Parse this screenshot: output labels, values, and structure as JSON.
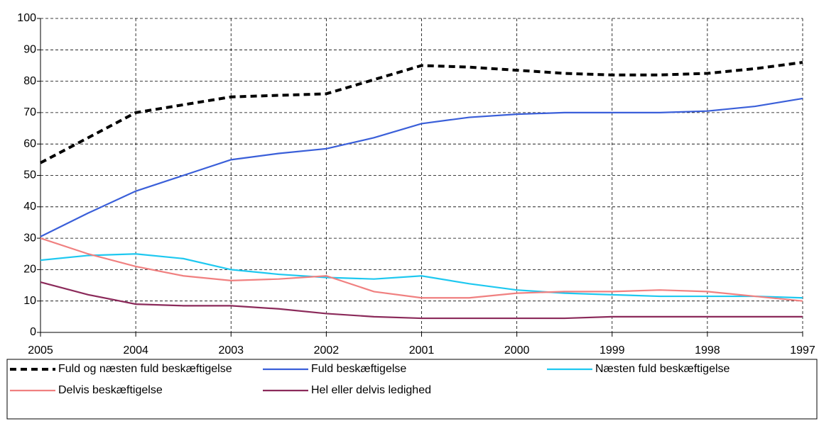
{
  "chart_data": {
    "type": "line",
    "categories": [
      "2005",
      null,
      "2004",
      null,
      "2003",
      null,
      "2002",
      null,
      "2001",
      null,
      "2000",
      null,
      "1999",
      null,
      "1998",
      null,
      "1997"
    ],
    "series": [
      {
        "name": "Fuld og næsten fuld beskæftigelse",
        "color": "#000000",
        "dashed": true,
        "values": [
          54,
          62,
          70,
          72.5,
          75,
          75.5,
          76,
          80.5,
          85,
          84.5,
          83.5,
          82.5,
          82,
          82,
          82.5,
          84,
          86
        ]
      },
      {
        "name": "Fuld beskæftigelse",
        "color": "#3a5fd9",
        "values": [
          30.5,
          38,
          45,
          50,
          55,
          57,
          58.5,
          62,
          66.5,
          68.5,
          69.5,
          70,
          70,
          70,
          70.5,
          72,
          74.5
        ]
      },
      {
        "name": "Næsten fuld beskæftigelse",
        "color": "#1ec8f0",
        "values": [
          23,
          24.5,
          25,
          23.5,
          20,
          18.5,
          17.5,
          17,
          18,
          15.5,
          13.5,
          12.5,
          12,
          11.5,
          11.5,
          11.5,
          11
        ]
      },
      {
        "name": "Delvis beskæftigelse",
        "color": "#f08080",
        "values": [
          30,
          25,
          21,
          18,
          16.5,
          17,
          18,
          13,
          11,
          11,
          12.5,
          13,
          13,
          13.5,
          13,
          11.5,
          10
        ]
      },
      {
        "name": "Hel eller delvis ledighed",
        "color": "#8b2a5a",
        "values": [
          16,
          12,
          9,
          8.5,
          8.5,
          7.5,
          6,
          5,
          4.5,
          4.5,
          4.5,
          4.5,
          5,
          5,
          5,
          5,
          5
        ]
      }
    ],
    "ylim": [
      0,
      100
    ],
    "yticks": [
      0,
      10,
      20,
      30,
      40,
      50,
      60,
      70,
      80,
      90,
      100
    ],
    "grid": true,
    "legend": "bottom"
  }
}
